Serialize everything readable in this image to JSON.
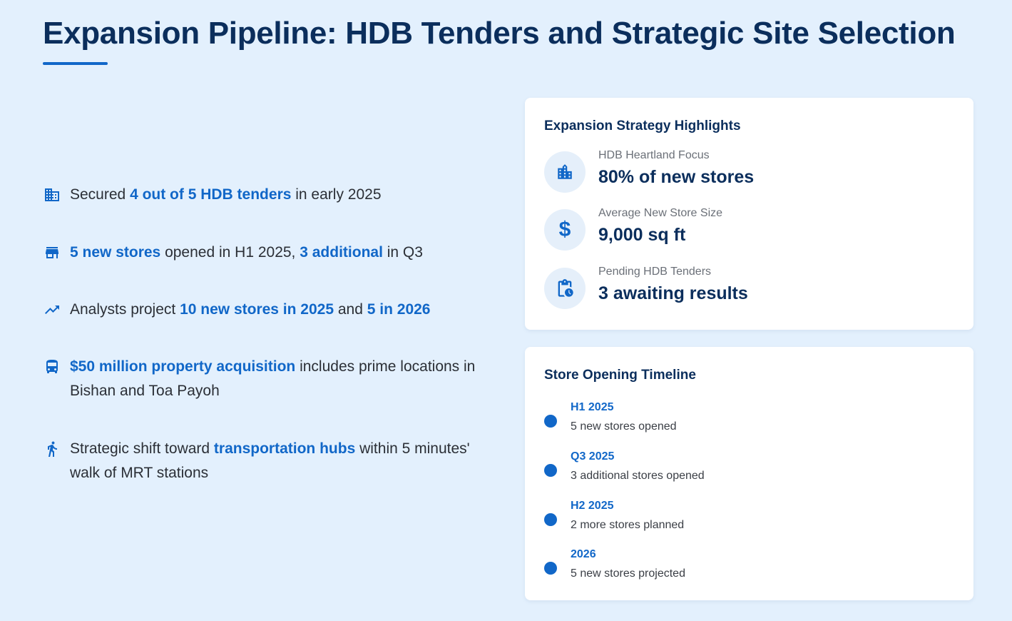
{
  "page": {
    "title": "Expansion Pipeline: HDB Tenders and Strategic Site Selection"
  },
  "bullets": [
    {
      "icon": "building-icon",
      "parts": [
        {
          "text": "Secured ",
          "hl": false
        },
        {
          "text": "4 out of 5 HDB tenders",
          "hl": true
        },
        {
          "text": " in early 2025",
          "hl": false
        }
      ]
    },
    {
      "icon": "store-icon",
      "parts": [
        {
          "text": "5 new stores",
          "hl": true
        },
        {
          "text": " opened in H1 2025, ",
          "hl": false
        },
        {
          "text": "3 additional",
          "hl": true
        },
        {
          "text": " in Q3",
          "hl": false
        }
      ]
    },
    {
      "icon": "trending-up-icon",
      "parts": [
        {
          "text": "Analysts project ",
          "hl": false
        },
        {
          "text": "10 new stores in 2025",
          "hl": true
        },
        {
          "text": " and ",
          "hl": false
        },
        {
          "text": "5 in 2026",
          "hl": true
        }
      ]
    },
    {
      "icon": "train-icon",
      "parts": [
        {
          "text": "$50 million property acquisition",
          "hl": true
        },
        {
          "text": " includes prime locations in Bishan and Toa Payoh",
          "hl": false
        }
      ]
    },
    {
      "icon": "walking-person-icon",
      "parts": [
        {
          "text": "Strategic shift toward ",
          "hl": false
        },
        {
          "text": "transportation hubs",
          "hl": true
        },
        {
          "text": " within 5 minutes' walk of MRT stations",
          "hl": false
        }
      ]
    }
  ],
  "highlights": {
    "title": "Expansion Strategy Highlights",
    "items": [
      {
        "icon": "building-icon",
        "label": "HDB Heartland Focus",
        "value": "80% of new stores"
      },
      {
        "icon": "dollar-icon",
        "label": "Average New Store Size",
        "value": "9,000 sq ft"
      },
      {
        "icon": "pending-clipboard-icon",
        "label": "Pending HDB Tenders",
        "value": "3 awaiting results"
      }
    ]
  },
  "timeline": {
    "title": "Store Opening Timeline",
    "items": [
      {
        "period": "H1 2025",
        "desc": "5 new stores opened"
      },
      {
        "period": "Q3 2025",
        "desc": "3 additional stores opened"
      },
      {
        "period": "H2 2025",
        "desc": "2 more stores planned"
      },
      {
        "period": "2026",
        "desc": "5 new stores projected"
      }
    ]
  },
  "colors": {
    "background": "#e3f0fd",
    "accent": "#1167c8",
    "heading": "#0b2e5c"
  }
}
